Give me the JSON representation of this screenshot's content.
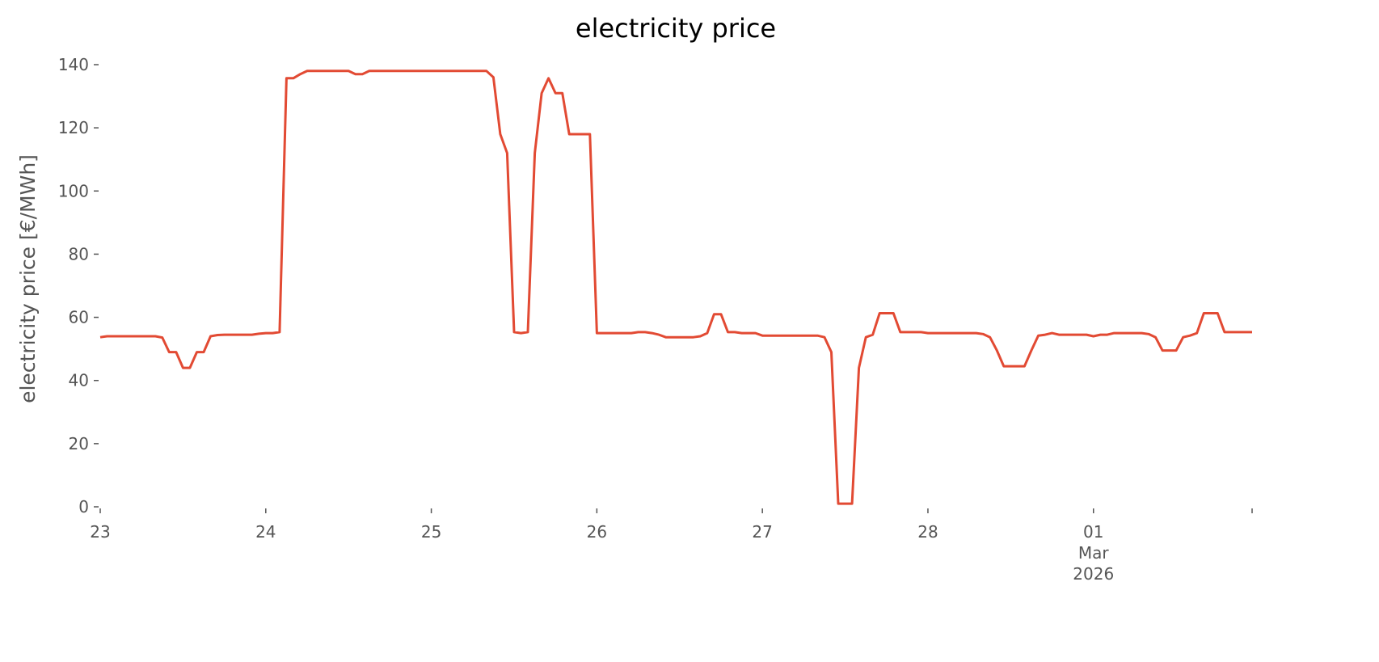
{
  "chart_data": {
    "type": "line",
    "title": "electricity price",
    "xlabel": "",
    "ylabel": "electricity price [€/MWh]",
    "ylim": [
      0,
      140
    ],
    "xlim": [
      "2026-02-23 00:00",
      "2026-03-01 23:00"
    ],
    "grid": false,
    "line_color": "#E24A33",
    "yticks": [
      0,
      20,
      40,
      60,
      80,
      100,
      120,
      140
    ],
    "xticks": [
      {
        "at": "2026-02-23 00:00",
        "label": [
          "23"
        ]
      },
      {
        "at": "2026-02-24 00:00",
        "label": [
          "24"
        ]
      },
      {
        "at": "2026-02-25 00:00",
        "label": [
          "25"
        ]
      },
      {
        "at": "2026-02-26 00:00",
        "label": [
          "26"
        ]
      },
      {
        "at": "2026-02-27 00:00",
        "label": [
          "27"
        ]
      },
      {
        "at": "2026-02-28 00:00",
        "label": [
          "28"
        ]
      },
      {
        "at": "2026-03-01 00:00",
        "label": [
          "01",
          "Mar",
          "2026"
        ]
      },
      {
        "at": "2026-03-01 23:00",
        "label": []
      }
    ],
    "series": [
      {
        "x": [
          "2026-02-23 00:00",
          "2026-02-23 01:00",
          "2026-02-23 02:00",
          "2026-02-23 03:00",
          "2026-02-23 04:00",
          "2026-02-23 05:00",
          "2026-02-23 06:00",
          "2026-02-23 07:00",
          "2026-02-23 08:00",
          "2026-02-23 09:00",
          "2026-02-23 10:00",
          "2026-02-23 11:00",
          "2026-02-23 12:00",
          "2026-02-23 13:00",
          "2026-02-23 14:00",
          "2026-02-23 15:00",
          "2026-02-23 16:00",
          "2026-02-23 17:00",
          "2026-02-23 18:00",
          "2026-02-23 19:00",
          "2026-02-23 20:00",
          "2026-02-23 21:00",
          "2026-02-23 22:00",
          "2026-02-23 23:00",
          "2026-02-24 00:00",
          "2026-02-24 01:00",
          "2026-02-24 02:00",
          "2026-02-24 03:00",
          "2026-02-24 04:00",
          "2026-02-24 05:00",
          "2026-02-24 06:00",
          "2026-02-24 07:00",
          "2026-02-24 08:00",
          "2026-02-24 09:00",
          "2026-02-24 10:00",
          "2026-02-24 11:00",
          "2026-02-24 12:00",
          "2026-02-24 13:00",
          "2026-02-24 14:00",
          "2026-02-24 15:00",
          "2026-02-24 16:00",
          "2026-02-24 17:00",
          "2026-02-24 18:00",
          "2026-02-24 19:00",
          "2026-02-24 20:00",
          "2026-02-24 21:00",
          "2026-02-24 22:00",
          "2026-02-24 23:00",
          "2026-02-25 00:00",
          "2026-02-25 01:00",
          "2026-02-25 02:00",
          "2026-02-25 03:00",
          "2026-02-25 04:00",
          "2026-02-25 05:00",
          "2026-02-25 06:00",
          "2026-02-25 07:00",
          "2026-02-25 08:00",
          "2026-02-25 09:00",
          "2026-02-25 10:00",
          "2026-02-25 11:00",
          "2026-02-25 12:00",
          "2026-02-25 13:00",
          "2026-02-25 14:00",
          "2026-02-25 15:00",
          "2026-02-25 16:00",
          "2026-02-25 17:00",
          "2026-02-25 18:00",
          "2026-02-25 19:00",
          "2026-02-25 20:00",
          "2026-02-25 21:00",
          "2026-02-25 22:00",
          "2026-02-25 23:00",
          "2026-02-26 00:00",
          "2026-02-26 01:00",
          "2026-02-26 02:00",
          "2026-02-26 03:00",
          "2026-02-26 04:00",
          "2026-02-26 05:00",
          "2026-02-26 06:00",
          "2026-02-26 07:00",
          "2026-02-26 08:00",
          "2026-02-26 09:00",
          "2026-02-26 10:00",
          "2026-02-26 11:00",
          "2026-02-26 12:00",
          "2026-02-26 13:00",
          "2026-02-26 14:00",
          "2026-02-26 15:00",
          "2026-02-26 16:00",
          "2026-02-26 17:00",
          "2026-02-26 18:00",
          "2026-02-26 19:00",
          "2026-02-26 20:00",
          "2026-02-26 21:00",
          "2026-02-26 22:00",
          "2026-02-26 23:00",
          "2026-02-27 00:00",
          "2026-02-27 01:00",
          "2026-02-27 02:00",
          "2026-02-27 03:00",
          "2026-02-27 04:00",
          "2026-02-27 05:00",
          "2026-02-27 06:00",
          "2026-02-27 07:00",
          "2026-02-27 08:00",
          "2026-02-27 09:00",
          "2026-02-27 10:00",
          "2026-02-27 11:00",
          "2026-02-27 12:00",
          "2026-02-27 13:00",
          "2026-02-27 14:00",
          "2026-02-27 15:00",
          "2026-02-27 16:00",
          "2026-02-27 17:00",
          "2026-02-27 18:00",
          "2026-02-27 19:00",
          "2026-02-27 20:00",
          "2026-02-27 21:00",
          "2026-02-27 22:00",
          "2026-02-27 23:00",
          "2026-02-28 00:00",
          "2026-02-28 01:00",
          "2026-02-28 02:00",
          "2026-02-28 03:00",
          "2026-02-28 04:00",
          "2026-02-28 05:00",
          "2026-02-28 06:00",
          "2026-02-28 07:00",
          "2026-02-28 08:00",
          "2026-02-28 09:00",
          "2026-02-28 10:00",
          "2026-02-28 11:00",
          "2026-02-28 12:00",
          "2026-02-28 13:00",
          "2026-02-28 14:00",
          "2026-02-28 15:00",
          "2026-02-28 16:00",
          "2026-02-28 17:00",
          "2026-02-28 18:00",
          "2026-02-28 19:00",
          "2026-02-28 20:00",
          "2026-02-28 21:00",
          "2026-02-28 22:00",
          "2026-02-28 23:00",
          "2026-03-01 00:00",
          "2026-03-01 01:00",
          "2026-03-01 02:00",
          "2026-03-01 03:00",
          "2026-03-01 04:00",
          "2026-03-01 05:00",
          "2026-03-01 06:00",
          "2026-03-01 07:00",
          "2026-03-01 08:00",
          "2026-03-01 09:00",
          "2026-03-01 10:00",
          "2026-03-01 11:00",
          "2026-03-01 12:00",
          "2026-03-01 13:00",
          "2026-03-01 14:00",
          "2026-03-01 15:00",
          "2026-03-01 16:00",
          "2026-03-01 17:00",
          "2026-03-01 18:00",
          "2026-03-01 19:00",
          "2026-03-01 20:00",
          "2026-03-01 21:00",
          "2026-03-01 22:00",
          "2026-03-01 23:00"
        ],
        "y": [
          53.7,
          54,
          54,
          54,
          54,
          54,
          54,
          54,
          54,
          53.6,
          49,
          49,
          44,
          44,
          49,
          49,
          54,
          54.4,
          54.5,
          54.5,
          54.5,
          54.5,
          54.5,
          54.8,
          55,
          55,
          55.3,
          135.7,
          135.7,
          137,
          138,
          138,
          138,
          138,
          138,
          138,
          138,
          137,
          137,
          138,
          138,
          138,
          138,
          138,
          138,
          138,
          138,
          138,
          138,
          138,
          138,
          138,
          138,
          138,
          138,
          138,
          138,
          136,
          118,
          112,
          55.3,
          55,
          55.3,
          112,
          131,
          135.7,
          131,
          131,
          118,
          118,
          118,
          118,
          55,
          55,
          55,
          55,
          55,
          55,
          55.3,
          55.3,
          55,
          54.5,
          53.7,
          53.7,
          53.7,
          53.7,
          53.7,
          54,
          55,
          61,
          61,
          55.3,
          55.3,
          55,
          55,
          55,
          54.2,
          54.2,
          54.2,
          54.2,
          54.2,
          54.2,
          54.2,
          54.2,
          54.2,
          53.7,
          49,
          1,
          1,
          1,
          44,
          53.7,
          54.5,
          61.3,
          61.3,
          61.3,
          55.3,
          55.3,
          55.3,
          55.3,
          55,
          55,
          55,
          55,
          55,
          55,
          55,
          55,
          54.7,
          53.7,
          49.5,
          44.5,
          44.5,
          44.5,
          44.5,
          49.5,
          54.2,
          54.5,
          55,
          54.5,
          54.5,
          54.5,
          54.5,
          54.5,
          54,
          54.5,
          54.5,
          55,
          55,
          55,
          55,
          55,
          54.7,
          53.7,
          49.5,
          49.5,
          49.5,
          53.7,
          54.2,
          55,
          61.3,
          61.3,
          61.3,
          55.3,
          55.3,
          55.3,
          55.3,
          55.3
        ]
      }
    ]
  }
}
